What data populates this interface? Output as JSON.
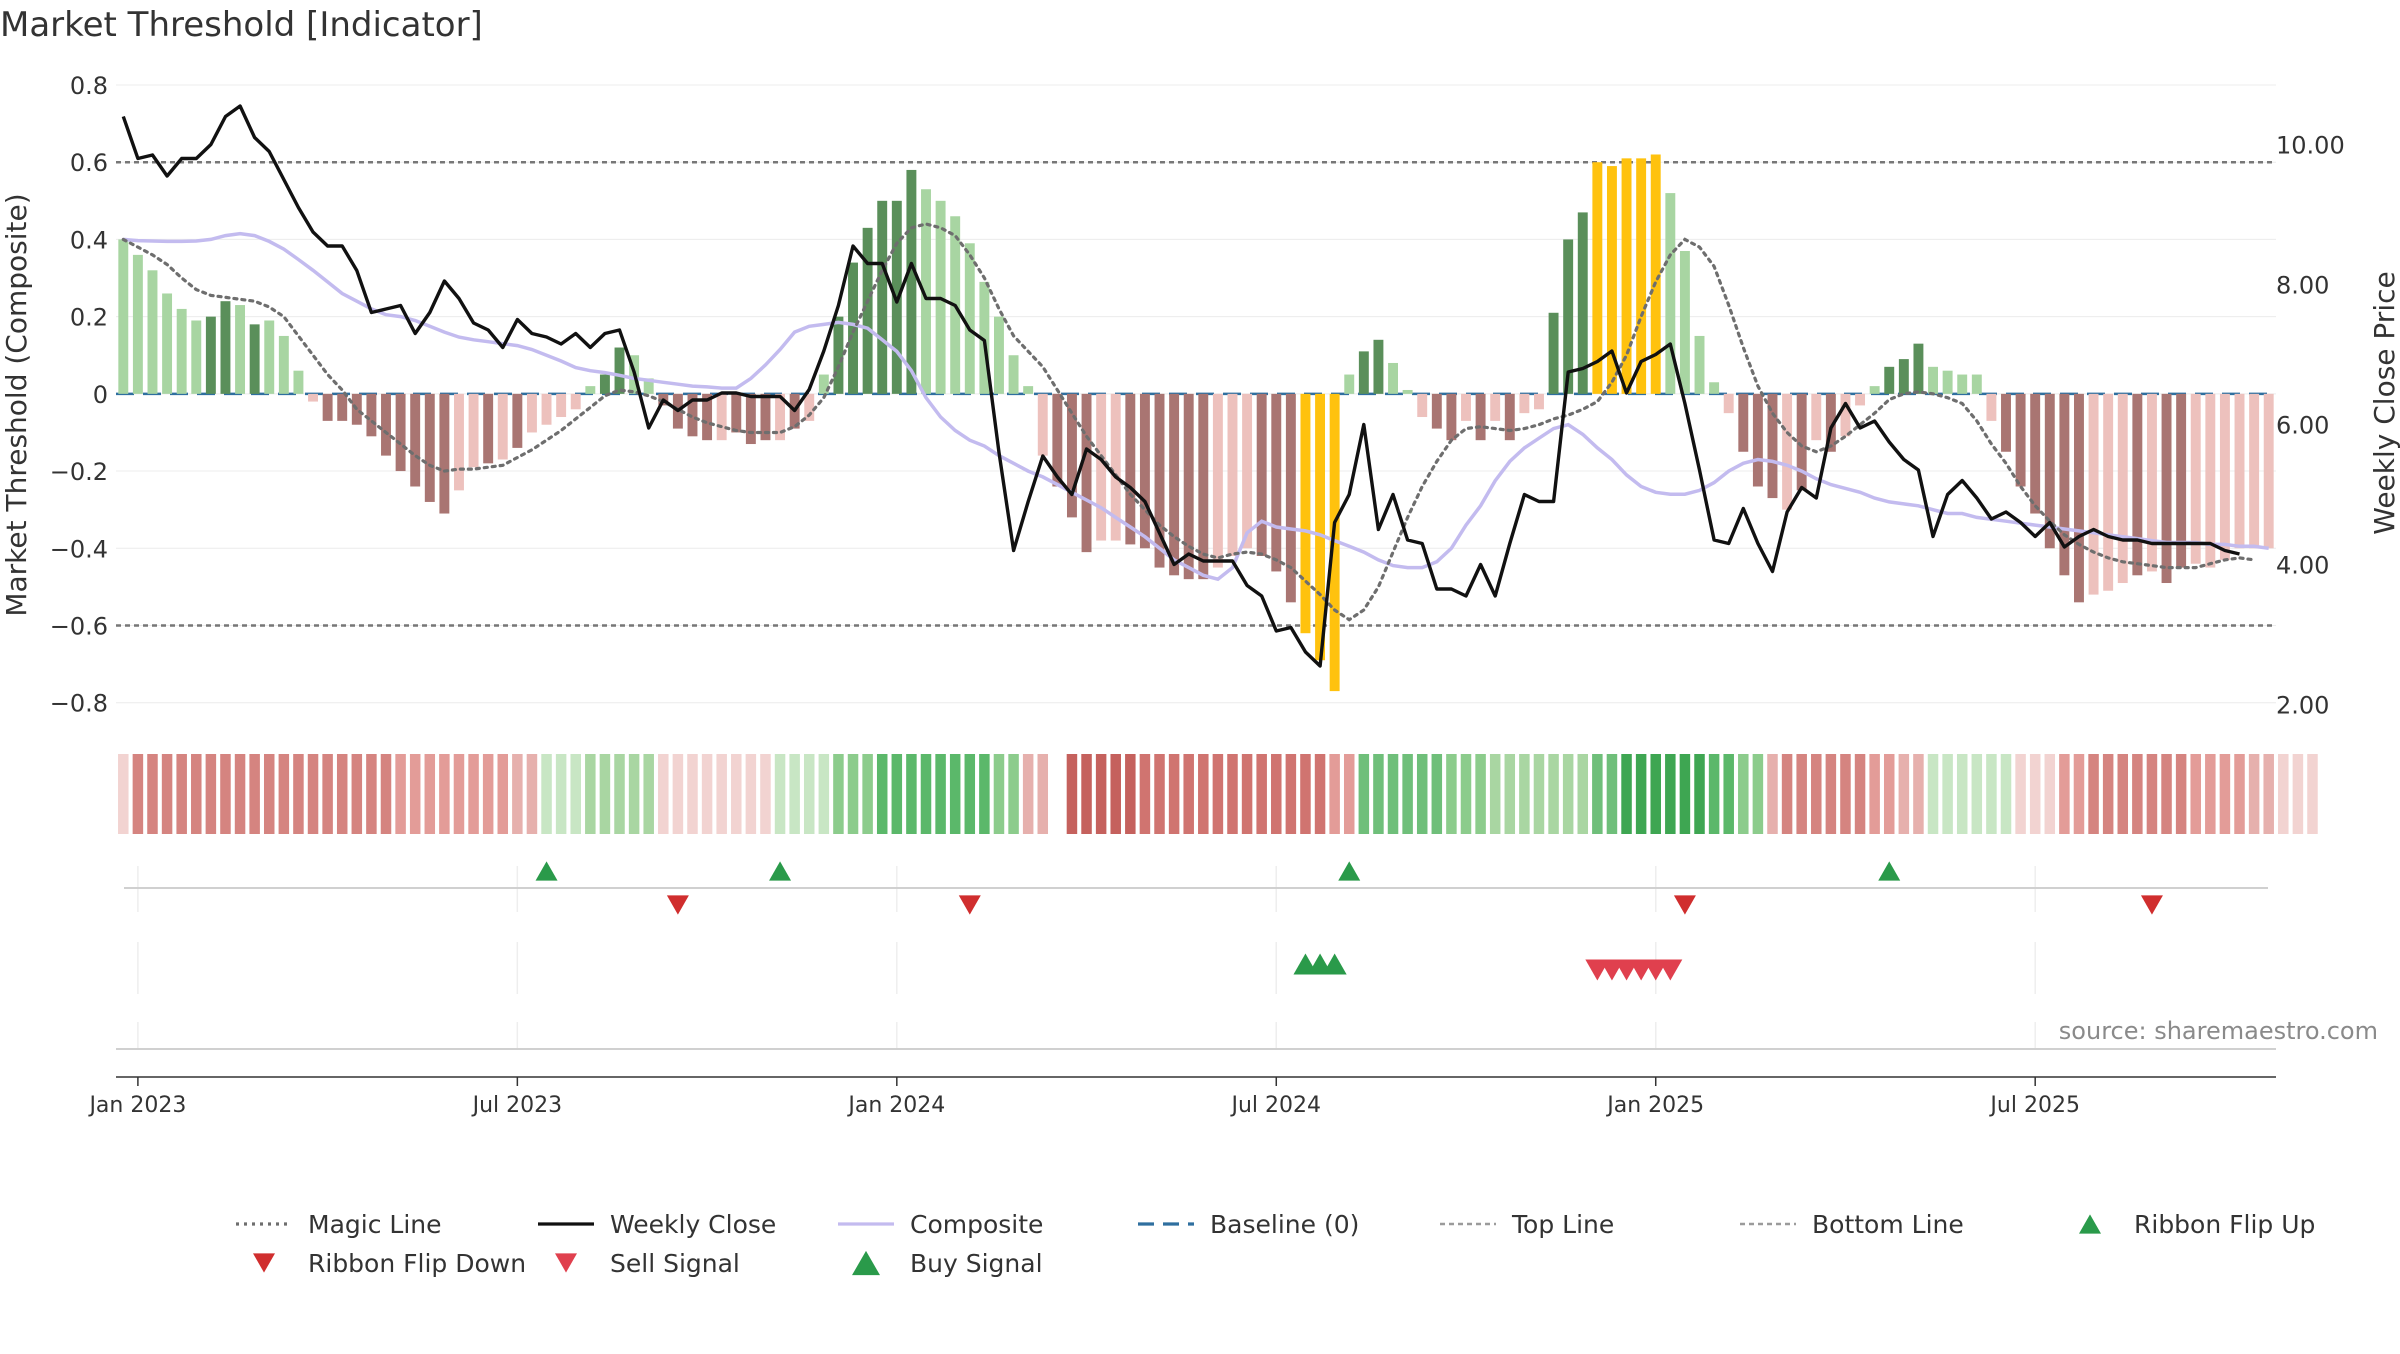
{
  "title": "Market Threshold [Indicator]",
  "source": "source: sharemaestro.com",
  "chart_data": {
    "type": "bar",
    "title": "Market Threshold [Indicator]",
    "ylabel_left": "Market Threshold (Composite)",
    "ylabel_right": "Weekly Close Price",
    "ylim_left": [
      -0.85,
      0.8
    ],
    "ylim_right": [
      1.75,
      10.85
    ],
    "yticks_left": [
      0.8,
      0.6,
      0.4,
      0.2,
      0,
      -0.2,
      -0.4,
      -0.6,
      -0.8
    ],
    "yticks_left_labels": [
      "0.8",
      "0.6",
      "0.4",
      "0.2",
      "0",
      "−0.2",
      "−0.4",
      "−0.6",
      "−0.8"
    ],
    "yticks_right": [
      10,
      8,
      6,
      4,
      2
    ],
    "yticks_right_labels": [
      "10.00",
      "8.00",
      "6.00",
      "4.00",
      "2.00"
    ],
    "top_line": 0.6,
    "bottom_line": -0.6,
    "x_start": "2022-12-25",
    "x_step_weeks": 1,
    "xticks": [
      {
        "week": 1,
        "label": "Jan 2023"
      },
      {
        "week": 27,
        "label": "Jul 2023"
      },
      {
        "week": 53,
        "label": "Jan 2024"
      },
      {
        "week": 79,
        "label": "Jul 2024"
      },
      {
        "week": 105,
        "label": "Jan 2025"
      },
      {
        "week": 131,
        "label": "Jul 2025"
      }
    ],
    "composite_bars": [
      0.4,
      0.36,
      0.32,
      0.26,
      0.22,
      0.19,
      0.2,
      0.24,
      0.23,
      0.18,
      0.19,
      0.15,
      0.06,
      -0.02,
      -0.07,
      -0.07,
      -0.08,
      -0.11,
      -0.16,
      -0.2,
      -0.24,
      -0.28,
      -0.31,
      -0.25,
      -0.19,
      -0.18,
      -0.17,
      -0.14,
      -0.1,
      -0.08,
      -0.06,
      -0.04,
      0.02,
      0.05,
      0.12,
      0.1,
      0.04,
      -0.03,
      -0.09,
      -0.11,
      -0.12,
      -0.12,
      -0.1,
      -0.13,
      -0.12,
      -0.12,
      -0.09,
      -0.07,
      0.05,
      0.2,
      0.34,
      0.43,
      0.5,
      0.5,
      0.58,
      0.53,
      0.5,
      0.46,
      0.39,
      0.29,
      0.2,
      0.1,
      0.02,
      -0.16,
      -0.24,
      -0.32,
      -0.41,
      -0.38,
      -0.38,
      -0.39,
      -0.4,
      -0.45,
      -0.47,
      -0.48,
      -0.48,
      -0.45,
      -0.42,
      -0.4,
      -0.42,
      -0.46,
      -0.54,
      -0.62,
      -0.69,
      -0.77,
      0.05,
      0.11,
      0.14,
      0.08,
      0.01,
      -0.06,
      -0.09,
      -0.12,
      -0.07,
      -0.12,
      -0.07,
      -0.12,
      -0.05,
      -0.04,
      0.21,
      0.4,
      0.47,
      0.6,
      0.59,
      0.61,
      0.61,
      0.62,
      0.52,
      0.37,
      0.15,
      0.03,
      -0.05,
      -0.15,
      -0.24,
      -0.27,
      -0.3,
      -0.25,
      -0.12,
      -0.15,
      -0.11,
      -0.03,
      0.02,
      0.07,
      0.09,
      0.13,
      0.07,
      0.06,
      0.05,
      0.05,
      -0.07,
      -0.15,
      -0.24,
      -0.31,
      -0.4,
      -0.47,
      -0.54,
      -0.52,
      -0.51,
      -0.49,
      -0.47,
      -0.46,
      -0.49,
      -0.45,
      -0.44,
      -0.45,
      -0.43,
      -0.4,
      -0.4,
      -0.4
    ],
    "bar_colors": [
      "#a8d5a2",
      "#a8d5a2",
      "#a8d5a2",
      "#a8d5a2",
      "#a8d5a2",
      "#a8d5a2",
      "#5a8f5a",
      "#5a8f5a",
      "#a8d5a2",
      "#5a8f5a",
      "#a8d5a2",
      "#a8d5a2",
      "#a8d5a2",
      "#edc1bd",
      "#a97572",
      "#a97572",
      "#a97572",
      "#a97572",
      "#a97572",
      "#a97572",
      "#a97572",
      "#a97572",
      "#a97572",
      "#edc1bd",
      "#edc1bd",
      "#a97572",
      "#edc1bd",
      "#a97572",
      "#edc1bd",
      "#edc1bd",
      "#edc1bd",
      "#edc1bd",
      "#a8d5a2",
      "#5a8f5a",
      "#5a8f5a",
      "#a8d5a2",
      "#a8d5a2",
      "#a97572",
      "#a97572",
      "#a97572",
      "#a97572",
      "#edc1bd",
      "#a97572",
      "#a97572",
      "#a97572",
      "#edc1bd",
      "#a97572",
      "#edc1bd",
      "#a8d5a2",
      "#5a8f5a",
      "#5a8f5a",
      "#5a8f5a",
      "#5a8f5a",
      "#5a8f5a",
      "#5a8f5a",
      "#a8d5a2",
      "#a8d5a2",
      "#a8d5a2",
      "#a8d5a2",
      "#a8d5a2",
      "#a8d5a2",
      "#a8d5a2",
      "#a8d5a2",
      "#edc1bd",
      "#a97572",
      "#a97572",
      "#a97572",
      "#edc1bd",
      "#edc1bd",
      "#a97572",
      "#a97572",
      "#a97572",
      "#a97572",
      "#a97572",
      "#a97572",
      "#edc1bd",
      "#edc1bd",
      "#edc1bd",
      "#a97572",
      "#a97572",
      "#a97572",
      "#ffc20e",
      "#ffc20e",
      "#ffc20e",
      "#a8d5a2",
      "#5a8f5a",
      "#5a8f5a",
      "#a8d5a2",
      "#a8d5a2",
      "#edc1bd",
      "#a97572",
      "#a97572",
      "#edc1bd",
      "#a97572",
      "#edc1bd",
      "#a97572",
      "#edc1bd",
      "#edc1bd",
      "#5a8f5a",
      "#5a8f5a",
      "#5a8f5a",
      "#ffc20e",
      "#ffc20e",
      "#ffc20e",
      "#ffc20e",
      "#ffc20e",
      "#a8d5a2",
      "#a8d5a2",
      "#a8d5a2",
      "#a8d5a2",
      "#edc1bd",
      "#a97572",
      "#a97572",
      "#a97572",
      "#edc1bd",
      "#a97572",
      "#edc1bd",
      "#a97572",
      "#edc1bd",
      "#edc1bd",
      "#a8d5a2",
      "#5a8f5a",
      "#5a8f5a",
      "#5a8f5a",
      "#a8d5a2",
      "#a8d5a2",
      "#a8d5a2",
      "#a8d5a2",
      "#edc1bd",
      "#a97572",
      "#a97572",
      "#a97572",
      "#a97572",
      "#a97572",
      "#a97572",
      "#edc1bd",
      "#edc1bd",
      "#edc1bd",
      "#a97572",
      "#edc1bd",
      "#a97572",
      "#a97572",
      "#edc1bd",
      "#edc1bd",
      "#edc1bd",
      "#edc1bd",
      "#edc1bd",
      "#edc1bd",
      "#a97572"
    ],
    "weekly_close": [
      10.4,
      9.8,
      9.85,
      9.55,
      9.8,
      9.8,
      10.0,
      10.4,
      10.55,
      10.1,
      9.9,
      9.5,
      9.1,
      8.75,
      8.55,
      8.55,
      8.2,
      7.6,
      7.65,
      7.7,
      7.3,
      7.6,
      8.05,
      7.8,
      7.45,
      7.35,
      7.1,
      7.5,
      7.3,
      7.25,
      7.15,
      7.3,
      7.1,
      7.3,
      7.35,
      6.75,
      5.95,
      6.35,
      6.2,
      6.35,
      6.35,
      6.45,
      6.45,
      6.4,
      6.4,
      6.4,
      6.2,
      6.5,
      7.05,
      7.7,
      8.55,
      8.3,
      8.3,
      7.75,
      8.3,
      7.8,
      7.8,
      7.7,
      7.35,
      7.2,
      5.6,
      4.2,
      4.9,
      5.55,
      5.25,
      5.0,
      5.65,
      5.5,
      5.25,
      5.1,
      4.9,
      4.45,
      4.0,
      4.15,
      4.05,
      4.05,
      4.05,
      3.7,
      3.55,
      3.05,
      3.1,
      2.75,
      2.55,
      4.6,
      5.0,
      6.0,
      4.5,
      5.0,
      4.35,
      4.3,
      3.65,
      3.65,
      3.55,
      4.0,
      3.55,
      4.3,
      5.0,
      4.9,
      4.9,
      6.75,
      6.8,
      6.9,
      7.05,
      6.45,
      6.9,
      7.0,
      7.15,
      6.3,
      5.35,
      4.35,
      4.3,
      4.8,
      4.3,
      3.9,
      4.75,
      5.1,
      4.95,
      5.95,
      6.3,
      5.95,
      6.05,
      5.75,
      5.5,
      5.35,
      4.4,
      5.0,
      5.2,
      4.95,
      4.65,
      4.75,
      4.6,
      4.4,
      4.6,
      4.25,
      4.4,
      4.5,
      4.4,
      4.35,
      4.35,
      4.3,
      4.3,
      4.3,
      4.3,
      4.3,
      4.2,
      4.15
    ],
    "composite_line": [
      0.4,
      0.397,
      0.396,
      0.395,
      0.395,
      0.396,
      0.4,
      0.41,
      0.415,
      0.41,
      0.395,
      0.375,
      0.348,
      0.32,
      0.29,
      0.26,
      0.24,
      0.22,
      0.205,
      0.2,
      0.19,
      0.175,
      0.16,
      0.147,
      0.14,
      0.135,
      0.13,
      0.125,
      0.115,
      0.1,
      0.085,
      0.068,
      0.06,
      0.055,
      0.048,
      0.04,
      0.035,
      0.03,
      0.025,
      0.02,
      0.018,
      0.015,
      0.015,
      0.04,
      0.075,
      0.115,
      0.16,
      0.175,
      0.18,
      0.185,
      0.18,
      0.17,
      0.14,
      0.11,
      0.06,
      -0.01,
      -0.06,
      -0.095,
      -0.12,
      -0.135,
      -0.16,
      -0.18,
      -0.2,
      -0.215,
      -0.235,
      -0.255,
      -0.275,
      -0.295,
      -0.32,
      -0.345,
      -0.37,
      -0.4,
      -0.43,
      -0.45,
      -0.47,
      -0.48,
      -0.45,
      -0.36,
      -0.33,
      -0.345,
      -0.35,
      -0.355,
      -0.365,
      -0.38,
      -0.395,
      -0.41,
      -0.43,
      -0.445,
      -0.45,
      -0.45,
      -0.435,
      -0.4,
      -0.34,
      -0.29,
      -0.225,
      -0.175,
      -0.14,
      -0.115,
      -0.09,
      -0.08,
      -0.105,
      -0.14,
      -0.17,
      -0.21,
      -0.24,
      -0.255,
      -0.26,
      -0.26,
      -0.25,
      -0.23,
      -0.2,
      -0.18,
      -0.17,
      -0.175,
      -0.185,
      -0.2,
      -0.22,
      -0.235,
      -0.245,
      -0.255,
      -0.27,
      -0.28,
      -0.285,
      -0.29,
      -0.3,
      -0.31,
      -0.31,
      -0.32,
      -0.325,
      -0.33,
      -0.335,
      -0.34,
      -0.345,
      -0.35,
      -0.355,
      -0.36,
      -0.365,
      -0.37,
      -0.375,
      -0.38,
      -0.385,
      -0.385,
      -0.385,
      -0.39,
      -0.39,
      -0.395,
      -0.395,
      -0.4
    ],
    "magic_line": [
      0.4,
      0.38,
      0.36,
      0.335,
      0.3,
      0.27,
      0.255,
      0.25,
      0.245,
      0.24,
      0.225,
      0.2,
      0.15,
      0.1,
      0.05,
      0.01,
      -0.04,
      -0.07,
      -0.1,
      -0.13,
      -0.16,
      -0.185,
      -0.2,
      -0.195,
      -0.195,
      -0.19,
      -0.185,
      -0.165,
      -0.145,
      -0.12,
      -0.095,
      -0.065,
      -0.035,
      -0.005,
      0.01,
      0.005,
      -0.005,
      -0.02,
      -0.04,
      -0.06,
      -0.075,
      -0.085,
      -0.095,
      -0.1,
      -0.1,
      -0.1,
      -0.085,
      -0.055,
      -0.01,
      0.07,
      0.16,
      0.24,
      0.32,
      0.39,
      0.43,
      0.44,
      0.43,
      0.41,
      0.36,
      0.3,
      0.22,
      0.15,
      0.11,
      0.07,
      0.01,
      -0.05,
      -0.11,
      -0.16,
      -0.21,
      -0.26,
      -0.3,
      -0.34,
      -0.37,
      -0.395,
      -0.415,
      -0.425,
      -0.415,
      -0.41,
      -0.415,
      -0.43,
      -0.45,
      -0.485,
      -0.52,
      -0.56,
      -0.585,
      -0.56,
      -0.5,
      -0.41,
      -0.32,
      -0.24,
      -0.175,
      -0.12,
      -0.09,
      -0.085,
      -0.09,
      -0.095,
      -0.09,
      -0.08,
      -0.065,
      -0.055,
      -0.04,
      -0.02,
      0.03,
      0.1,
      0.2,
      0.29,
      0.36,
      0.4,
      0.38,
      0.33,
      0.23,
      0.12,
      0.02,
      -0.05,
      -0.1,
      -0.135,
      -0.15,
      -0.135,
      -0.11,
      -0.08,
      -0.05,
      -0.015,
      0.0,
      0.005,
      0.0,
      -0.01,
      -0.025,
      -0.07,
      -0.13,
      -0.18,
      -0.24,
      -0.29,
      -0.33,
      -0.365,
      -0.39,
      -0.41,
      -0.425,
      -0.435,
      -0.44,
      -0.445,
      -0.45,
      -0.45,
      -0.45,
      -0.44,
      -0.43,
      -0.425,
      -0.43
    ],
    "ribbon_colors": [
      "#f2d3d1",
      "#d58480",
      "#d58480",
      "#d58480",
      "#d58480",
      "#d58480",
      "#d58480",
      "#d58480",
      "#d58480",
      "#d58480",
      "#d58480",
      "#d58480",
      "#d58480",
      "#d58480",
      "#d58480",
      "#d58480",
      "#d58480",
      "#d58480",
      "#d58480",
      "#e39c98",
      "#e39c98",
      "#e39c98",
      "#e39c98",
      "#e39c98",
      "#e39c98",
      "#e39c98",
      "#e39c98",
      "#e6b0ad",
      "#e6b0ad",
      "#c8e6c4",
      "#c8e6c4",
      "#c8e6c4",
      "#a9d6a2",
      "#a9d6a2",
      "#a9d6a2",
      "#a9d6a2",
      "#a9d6a2",
      "#f2d3d1",
      "#f2d3d1",
      "#f2d3d1",
      "#f2d3d1",
      "#f2d3d1",
      "#f2d3d1",
      "#f2d3d1",
      "#f2d3d1",
      "#c8e6c4",
      "#c8e6c4",
      "#c8e6c4",
      "#c8e6c4",
      "#8ccc8c",
      "#8ccc8c",
      "#8ccc8c",
      "#5bb86a",
      "#5bb86a",
      "#5bb86a",
      "#5bb86a",
      "#5bb86a",
      "#5bb86a",
      "#5bb86a",
      "#5bb86a",
      "#8ccc8c",
      "#8ccc8c",
      "#e6b0ad",
      "#e6b0ad",
      "#ffffff",
      "#c5615d",
      "#c5615d",
      "#c5615d",
      "#c5615d",
      "#c5615d",
      "#d07470",
      "#d07470",
      "#d07470",
      "#d07470",
      "#d07470",
      "#d07470",
      "#d07470",
      "#d07470",
      "#d07470",
      "#d07470",
      "#d07470",
      "#d07470",
      "#d07470",
      "#e39c98",
      "#e39c98",
      "#6fbf7a",
      "#6fbf7a",
      "#6fbf7a",
      "#6fbf7a",
      "#6fbf7a",
      "#6fbf7a",
      "#8ccc8c",
      "#8ccc8c",
      "#8ccc8c",
      "#a9d6a2",
      "#a9d6a2",
      "#a9d6a2",
      "#a9d6a2",
      "#a9d6a2",
      "#a9d6a2",
      "#a9d6a2",
      "#6fbf7a",
      "#6fbf7a",
      "#3ea652",
      "#3ea652",
      "#3ea652",
      "#3ea652",
      "#3ea652",
      "#3ea652",
      "#5bb86a",
      "#5bb86a",
      "#8ccc8c",
      "#8ccc8c",
      "#e6b0ad",
      "#d58480",
      "#d58480",
      "#d58480",
      "#d58480",
      "#d58480",
      "#d58480",
      "#e39c98",
      "#e39c98",
      "#e6b0ad",
      "#e6b0ad",
      "#c8e6c4",
      "#c8e6c4",
      "#c8e6c4",
      "#c8e6c4",
      "#c8e6c4",
      "#c8e6c4",
      "#f2d3d1",
      "#f2d3d1",
      "#f2d3d1",
      "#e39c98",
      "#e39c98",
      "#d58480",
      "#d58480",
      "#d58480",
      "#d58480",
      "#d58480",
      "#d58480",
      "#d58480",
      "#e39c98",
      "#e39c98",
      "#e39c98",
      "#e39c98",
      "#e6b0ad",
      "#e6b0ad",
      "#f2d3d1",
      "#f2d3d1",
      "#f2d3d1"
    ],
    "ribbon_flip_up_weeks": [
      29,
      45,
      84,
      121
    ],
    "ribbon_flip_down_weeks": [
      38,
      58,
      107,
      139
    ],
    "buy_signal_weeks": [
      81,
      82,
      83
    ],
    "sell_signal_weeks": [
      101,
      102,
      103,
      104,
      105,
      106
    ],
    "legend": [
      {
        "label": "Magic Line",
        "style": "dotted",
        "color": "#6e6e6e"
      },
      {
        "label": "Weekly Close",
        "style": "solid",
        "color": "#111111"
      },
      {
        "label": "Composite",
        "style": "solid",
        "color": "#c3bbef"
      },
      {
        "label": "Baseline (0)",
        "style": "dashed",
        "color": "#2f6f9f"
      },
      {
        "label": "Top Line",
        "style": "dashed-thin",
        "color": "#9b9b9b"
      },
      {
        "label": "Bottom Line",
        "style": "dashed-thin",
        "color": "#9b9b9b"
      },
      {
        "label": "Ribbon Flip Up",
        "style": "marker-up",
        "color": "#2a9a4a"
      },
      {
        "label": "Ribbon Flip Down",
        "style": "marker-down",
        "color": "#d02e2e"
      },
      {
        "label": "Sell Signal",
        "style": "marker-down",
        "color": "#e0404e"
      },
      {
        "label": "Buy Signal",
        "style": "marker-up",
        "color": "#2a9a4a"
      }
    ],
    "legend_position": "bottom"
  }
}
